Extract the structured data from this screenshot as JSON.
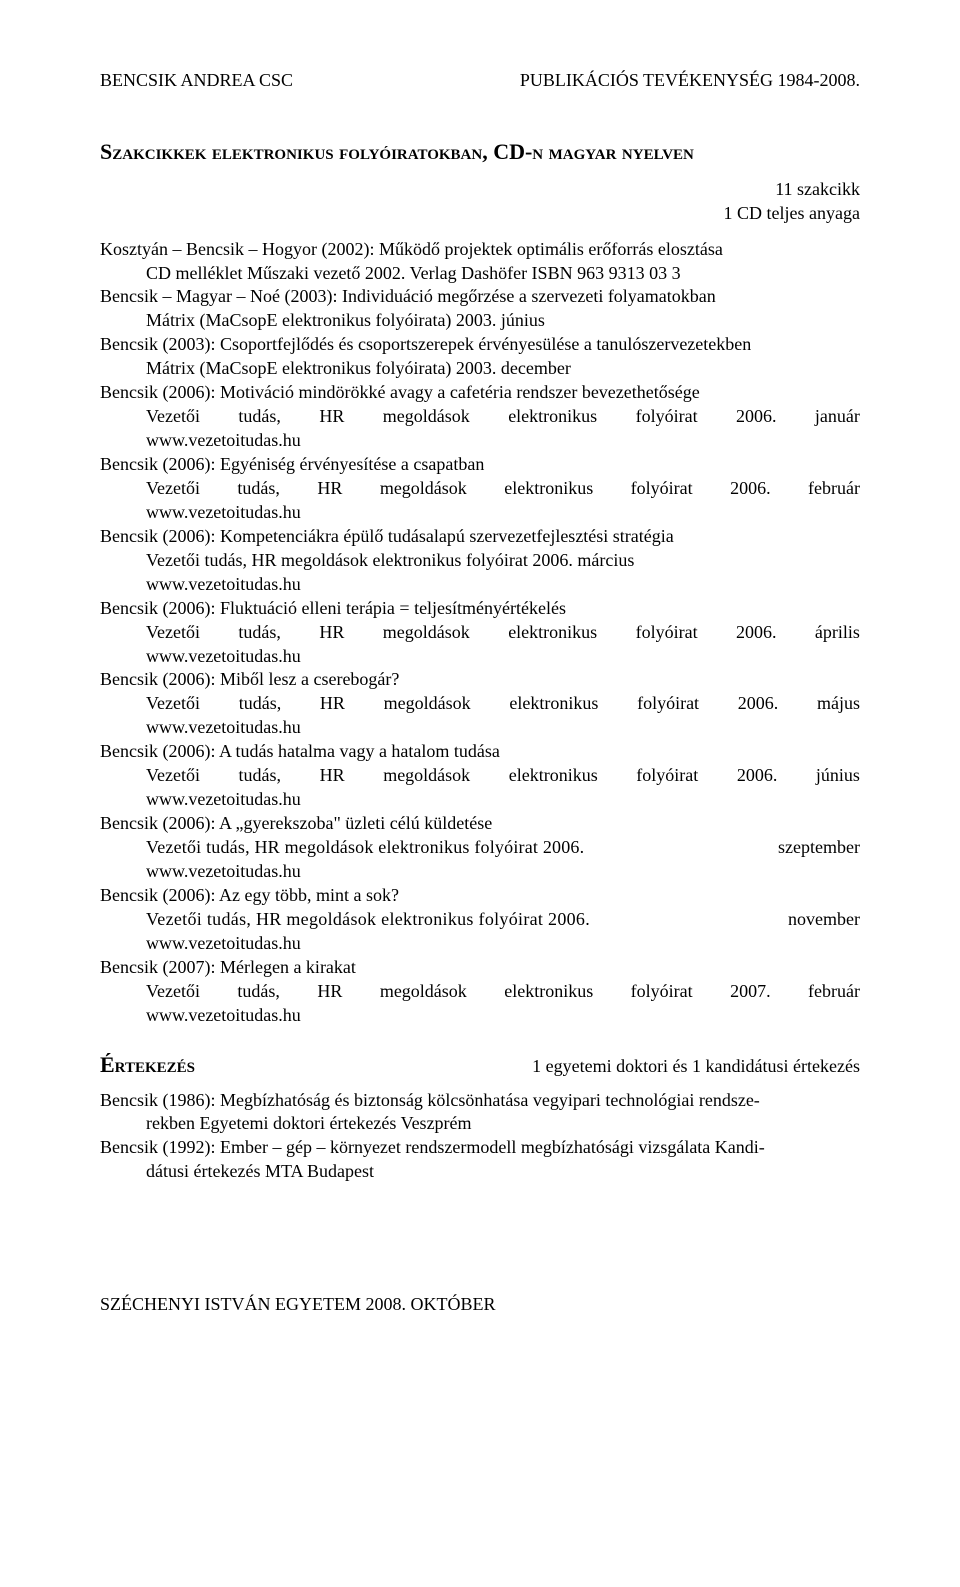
{
  "header": {
    "left": "BENCSIK ANDREA CSC",
    "right": "PUBLIKÁCIÓS TEVÉKENYSÉG 1984-2008."
  },
  "section1": {
    "title": "Szakcikkek elektronikus folyóiratokban, CD-n magyar nyelven",
    "count1": "11 szakcikk",
    "count2": "1 CD teljes anyaga",
    "e1_l1": "Kosztyán – Bencsik – Hogyor (2002): Működő projektek optimális erőforrás elosztása",
    "e1_l2": "CD melléklet Műszaki vezető 2002. Verlag Dashöfer ISBN 963 9313 03 3",
    "e2_l1": "Bencsik – Magyar – Noé (2003): Individuáció megőrzése a szervezeti folyamatokban",
    "e2_l2": "Mátrix (MaCsopE elektronikus folyóirata) 2003. június",
    "e3_l1": "Bencsik (2003): Csoportfejlődés és csoportszerepek érvényesülése a tanulószervezetekben",
    "e3_l2": "Mátrix (MaCsopE elektronikus folyóirata) 2003. december",
    "e4_l1": "Bencsik (2006): Motiváció mindörökké avagy a cafetéria rendszer bevezethetősége",
    "row_vt": "Vezetői",
    "row_tud": "tudás,",
    "row_hr": "HR",
    "row_meg": "megoldások",
    "row_elek": "elektronikus",
    "row_foly": "folyóirat",
    "y2006": "2006.",
    "y2007": "2007.",
    "m_jan": "január",
    "m_feb": "február",
    "m_apr": "április",
    "m_maj": "május",
    "m_jun": "június",
    "m_sep": "szeptember",
    "m_nov": "november",
    "url": "www.vezetoitudas.hu",
    "e5_l1": "Bencsik (2006): Egyéniség érvényesítése a csapatban",
    "e6_l1": "Bencsik (2006): Kompetenciákra épülő tudásalapú szervezetfejlesztési stratégia",
    "e6_l2": "Vezetői tudás, HR megoldások elektronikus folyóirat 2006. március",
    "e7_l1a": " Bencsik (2006): Fluktuáció elleni terápia = teljesítményértékelés",
    "e8_l1": "Bencsik (2006): Miből lesz a cserebogár?",
    "e9_l1": "Bencsik (2006): A tudás hatalma vagy a hatalom tudása",
    "e10_l1": "Bencsik (2006): A „gyerekszoba\" üzleti célú küldetése",
    "e10_row_pre": "Vezetői  tudás,  HR  megoldások  elektronikus  folyóirat  2006.",
    "e11_l1": "Bencsik (2006): Az egy több, mint a sok?",
    "e11_row_pre": "Vezetői  tudás,  HR  megoldások  elektronikus  folyóirat  2006.",
    "e12_l1": "Bencsik (2007): Mérlegen a kirakat"
  },
  "section2": {
    "title": "Értekezés",
    "count": "1 egyetemi doktori és 1 kandidátusi értekezés",
    "d1_l1": "Bencsik (1986): Megbízhatóság és biztonság kölcsönhatása vegyipari technológiai rendsze-",
    "d1_l2": "rekben Egyetemi doktori értekezés Veszprém",
    "d2_l1": "Bencsik (1992): Ember – gép – környezet rendszermodell megbízhatósági vizsgálata Kandi-",
    "d2_l2": "dátusi értekezés MTA Budapest"
  },
  "footer": "SZÉCHENYI ISTVÁN EGYETEM 2008. OKTÓBER"
}
